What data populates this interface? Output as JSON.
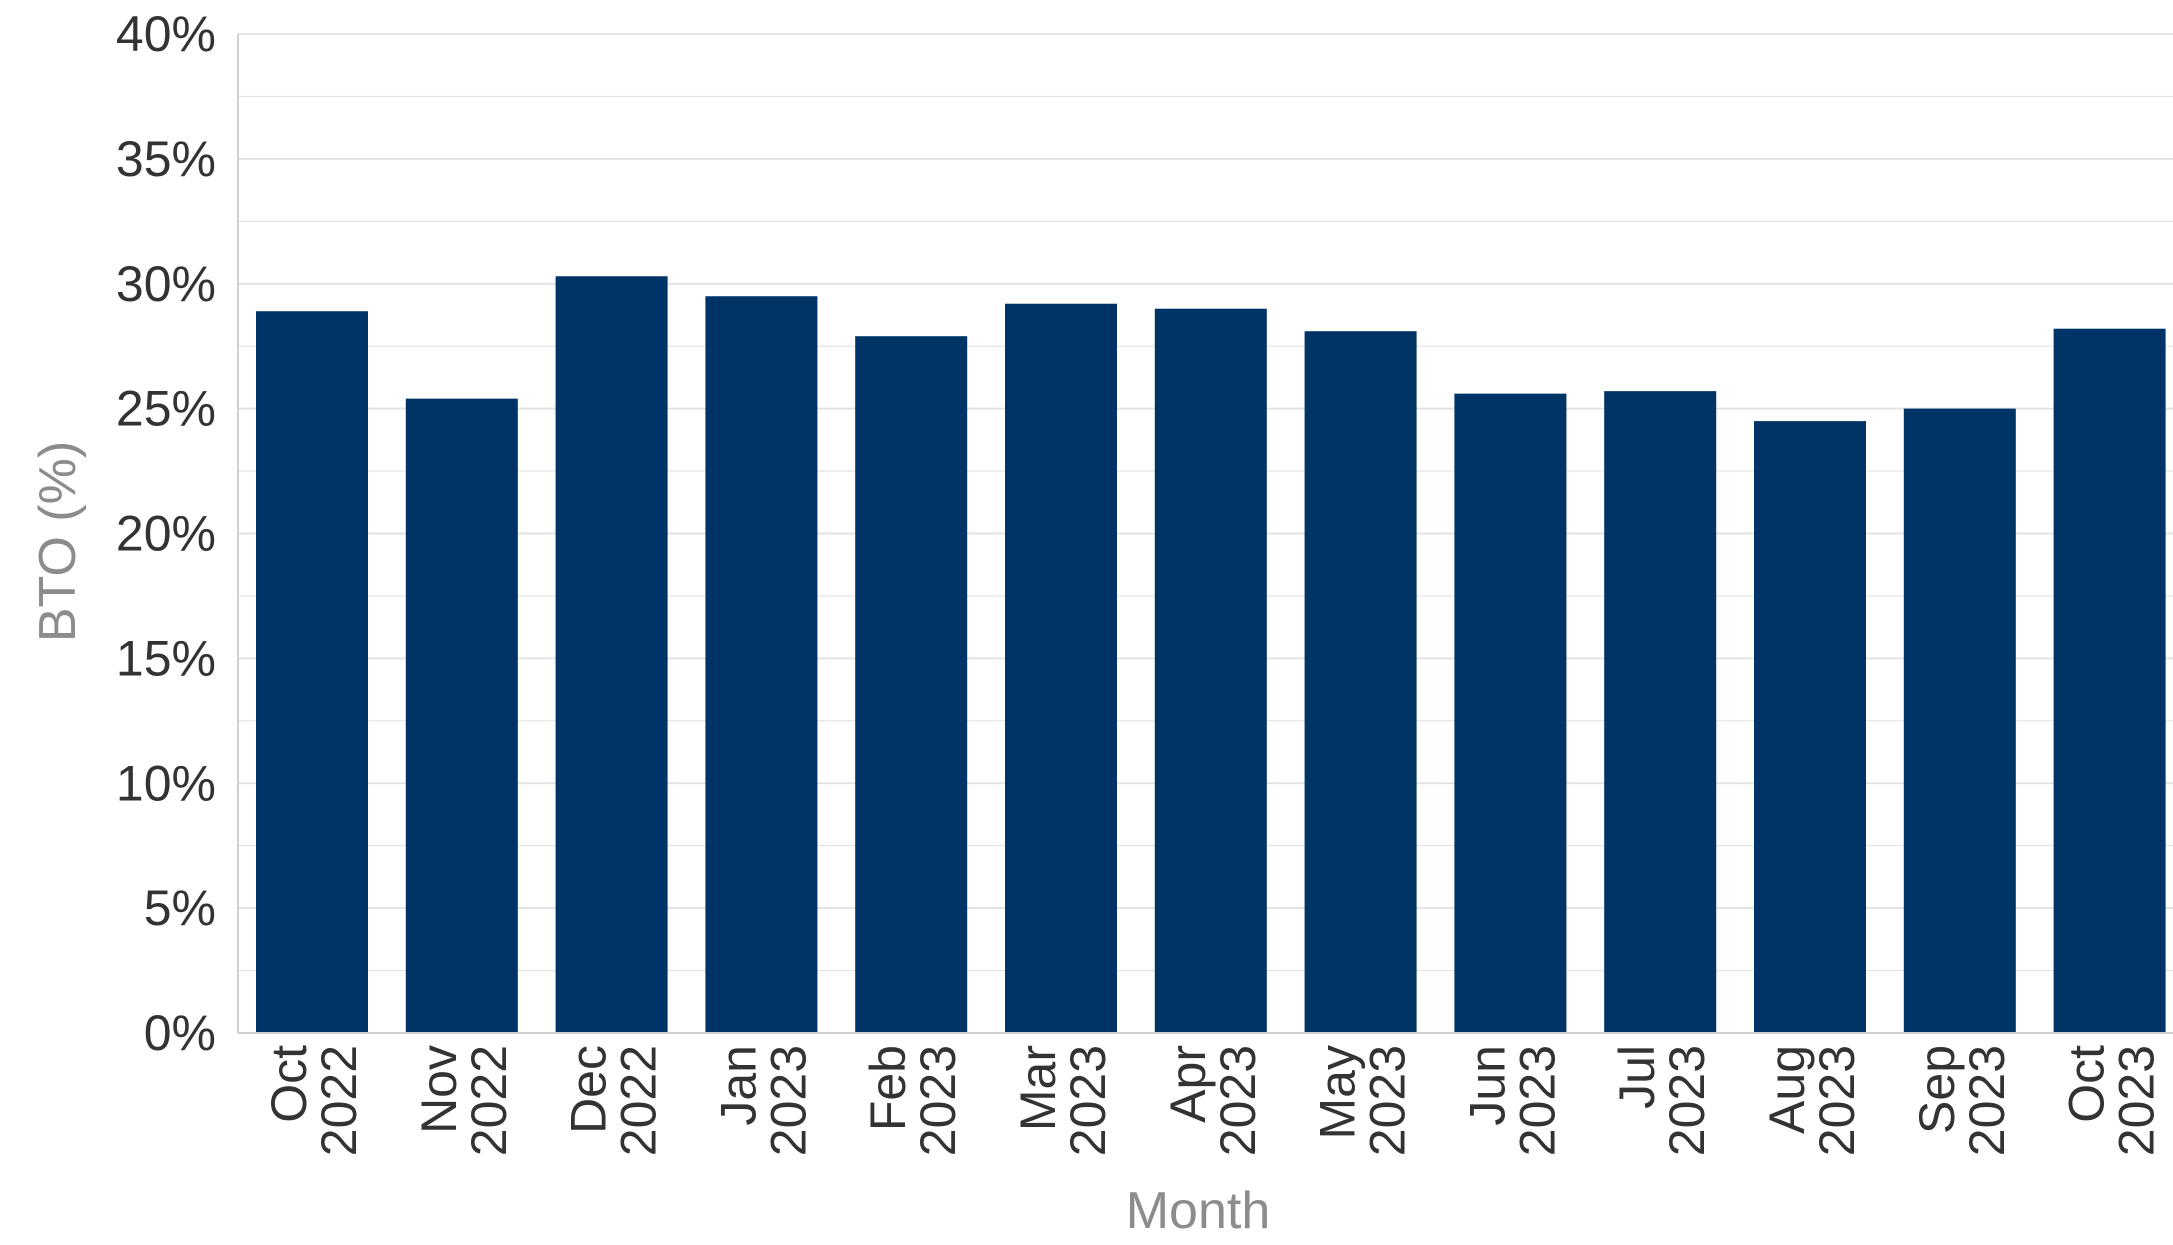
{
  "chart_data": {
    "type": "bar",
    "xlabel": "Month",
    "ylabel": "BTO (%)",
    "ylim": [
      0,
      40
    ],
    "y_ticks": [
      "0%",
      "5%",
      "10%",
      "15%",
      "20%",
      "25%",
      "30%",
      "35%",
      "40%"
    ],
    "y_tick_values": [
      0,
      5,
      10,
      15,
      20,
      25,
      30,
      35,
      40
    ],
    "grid": true,
    "legend": "none",
    "categories": [
      [
        "Oct",
        "2022"
      ],
      [
        "Nov",
        "2022"
      ],
      [
        "Dec",
        "2022"
      ],
      [
        "Jan",
        "2023"
      ],
      [
        "Feb",
        "2023"
      ],
      [
        "Mar",
        "2023"
      ],
      [
        "Apr",
        "2023"
      ],
      [
        "May",
        "2023"
      ],
      [
        "Jun",
        "2023"
      ],
      [
        "Jul",
        "2023"
      ],
      [
        "Aug",
        "2023"
      ],
      [
        "Sep",
        "2023"
      ],
      [
        "Oct",
        "2023"
      ]
    ],
    "values": [
      28.9,
      25.4,
      30.3,
      29.5,
      27.9,
      29.2,
      29.0,
      28.1,
      25.6,
      25.7,
      24.5,
      25.0,
      28.2
    ],
    "colors": {
      "bar": "#003366",
      "grid": "#e3e3e3",
      "axis": "#d0d0d0",
      "tick_text": "#333333",
      "axis_title": "#8c8c8c"
    }
  }
}
